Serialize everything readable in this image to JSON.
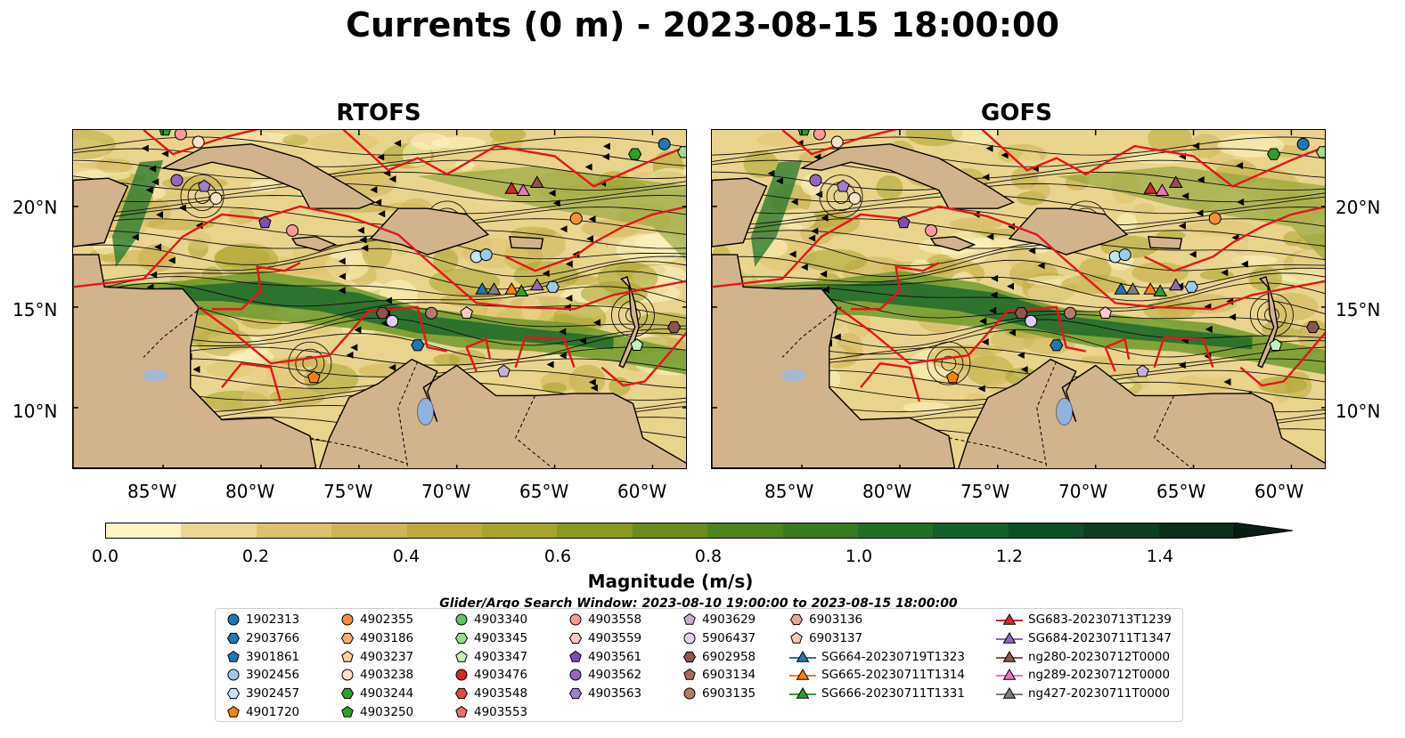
{
  "title": "Currents (0 m) - 2023-08-15 18:00:00",
  "panels": [
    {
      "title": "RTOFS",
      "key": "rtofs"
    },
    {
      "title": "GOFS",
      "key": "gofs"
    }
  ],
  "axes": {
    "lon_ticks": [
      "85°W",
      "80°W",
      "75°W",
      "70°W",
      "65°W",
      "60°W"
    ],
    "lat_ticks": [
      "20°N",
      "15°N",
      "10°N"
    ],
    "lon_range": [
      -89.6,
      -58.2
    ],
    "lat_range": [
      6.9,
      23.8
    ]
  },
  "colorbar": {
    "label": "Magnitude (m/s)",
    "ticks": [
      "0.0",
      "0.2",
      "0.4",
      "0.6",
      "0.8",
      "1.0",
      "1.2",
      "1.4"
    ],
    "range": [
      0.0,
      1.5
    ],
    "extend": "max",
    "colors": [
      "#fdf5c3",
      "#ecd895",
      "#dcc270",
      "#cdb455",
      "#bcaa3c",
      "#a6a42c",
      "#8a9a1e",
      "#6c8d1a",
      "#4f831c",
      "#387a20",
      "#236e26",
      "#145f2b",
      "#0f4e29",
      "#0e3e22",
      "#0c2e1a",
      "#0a2015"
    ]
  },
  "search_window": "Glider/Argo Search Window: 2023-08-10 19:00:00 to 2023-08-15 18:00:00",
  "legend": {
    "columns": [
      [
        {
          "label": "1902313",
          "marker": "circle",
          "color": "#1f77b4"
        },
        {
          "label": "2903766",
          "marker": "hexagon",
          "color": "#1f77b4"
        },
        {
          "label": "3901861",
          "marker": "pentagon",
          "color": "#1f77b4"
        },
        {
          "label": "3902456",
          "marker": "circle",
          "color": "#9ecae9"
        },
        {
          "label": "3902457",
          "marker": "hexagon",
          "color": "#c6e2f5"
        },
        {
          "label": "4901720",
          "marker": "pentagon",
          "color": "#ff7f0e"
        }
      ],
      [
        {
          "label": "4902355",
          "marker": "circle",
          "color": "#fd8d3c"
        },
        {
          "label": "4903186",
          "marker": "hexagon",
          "color": "#fdae6b"
        },
        {
          "label": "4903237",
          "marker": "pentagon",
          "color": "#fdd0a2"
        },
        {
          "label": "4903238",
          "marker": "circle",
          "color": "#fde0c5"
        },
        {
          "label": "4903244",
          "marker": "hexagon",
          "color": "#2ca02c"
        },
        {
          "label": "4903250",
          "marker": "pentagon",
          "color": "#2ca02c"
        }
      ],
      [
        {
          "label": "4903340",
          "marker": "circle",
          "color": "#5ec26a"
        },
        {
          "label": "4903345",
          "marker": "hexagon",
          "color": "#98df8a"
        },
        {
          "label": "4903347",
          "marker": "pentagon",
          "color": "#c7f0bf"
        },
        {
          "label": "4903476",
          "marker": "circle",
          "color": "#d62728"
        },
        {
          "label": "4903548",
          "marker": "hexagon",
          "color": "#e04a4a"
        },
        {
          "label": "4903553",
          "marker": "pentagon",
          "color": "#f07070"
        }
      ],
      [
        {
          "label": "4903558",
          "marker": "circle",
          "color": "#ff9896"
        },
        {
          "label": "4903559",
          "marker": "hexagon",
          "color": "#ffc9c6"
        },
        {
          "label": "4903561",
          "marker": "pentagon",
          "color": "#7b4fb0"
        },
        {
          "label": "4903562",
          "marker": "circle",
          "color": "#9467bd"
        },
        {
          "label": "4903563",
          "marker": "hexagon",
          "color": "#a07dd0"
        }
      ],
      [
        {
          "label": "4903629",
          "marker": "pentagon",
          "color": "#c5b0d5"
        },
        {
          "label": "5906437",
          "marker": "circle",
          "color": "#e2cff0"
        },
        {
          "label": "6902958",
          "marker": "hexagon",
          "color": "#8c564b"
        },
        {
          "label": "6903134",
          "marker": "pentagon",
          "color": "#a56b5d"
        },
        {
          "label": "6903135",
          "marker": "circle",
          "color": "#b77a6a"
        }
      ],
      [
        {
          "label": "6903136",
          "marker": "hexagon",
          "color": "#e3a895"
        },
        {
          "label": "6903137",
          "marker": "pentagon",
          "color": "#f7c9b8"
        },
        {
          "label": "SG664-20230719T1323",
          "marker": "triangle",
          "color": "#1f77b4"
        },
        {
          "label": "SG665-20230711T1314",
          "marker": "triangle",
          "color": "#ff7f0e"
        },
        {
          "label": "SG666-20230711T1331",
          "marker": "triangle",
          "color": "#2ca02c"
        }
      ],
      [
        {
          "label": "SG683-20230713T1239",
          "marker": "triangle",
          "color": "#d62728"
        },
        {
          "label": "SG684-20230711T1347",
          "marker": "triangle",
          "color": "#9467bd"
        },
        {
          "label": "ng280-20230712T0000",
          "marker": "triangle",
          "color": "#8c564b"
        },
        {
          "label": "ng289-20230712T0000",
          "marker": "triangle",
          "color": "#e377c2"
        },
        {
          "label": "ng427-20230711T0000",
          "marker": "triangle",
          "color": "#7f7f7f"
        }
      ]
    ]
  },
  "stations": [
    {
      "lon": -84.9,
      "lat": 23.8,
      "marker": "pentagon",
      "color": "#2ca02c"
    },
    {
      "lon": -84.1,
      "lat": 23.6,
      "marker": "circle",
      "color": "#ff9896"
    },
    {
      "lon": -83.2,
      "lat": 23.2,
      "marker": "circle",
      "color": "#fde0c5"
    },
    {
      "lon": -59.4,
      "lat": 23.1,
      "marker": "circle",
      "color": "#1f77b4"
    },
    {
      "lon": -58.4,
      "lat": 22.7,
      "marker": "hexagon",
      "color": "#98df8a"
    },
    {
      "lon": -60.9,
      "lat": 22.6,
      "marker": "hexagon",
      "color": "#2ca02c"
    },
    {
      "lon": -84.3,
      "lat": 21.3,
      "marker": "circle",
      "color": "#9467bd"
    },
    {
      "lon": -82.9,
      "lat": 21.0,
      "marker": "pentagon",
      "color": "#a07dd0"
    },
    {
      "lon": -82.3,
      "lat": 20.4,
      "marker": "circle",
      "color": "#fde0c5"
    },
    {
      "lon": -63.9,
      "lat": 19.4,
      "marker": "circle",
      "color": "#fd8d3c"
    },
    {
      "lon": -79.8,
      "lat": 19.2,
      "marker": "pentagon",
      "color": "#7b4fb0"
    },
    {
      "lon": -78.4,
      "lat": 18.8,
      "marker": "circle",
      "color": "#ff9896"
    },
    {
      "lon": -69.0,
      "lat": 17.5,
      "marker": "circle",
      "color": "#c6e2f5"
    },
    {
      "lon": -68.5,
      "lat": 17.6,
      "marker": "circle",
      "color": "#9ecae9"
    },
    {
      "lon": -65.1,
      "lat": 16.0,
      "marker": "hexagon",
      "color": "#9ecae9"
    },
    {
      "lon": -73.8,
      "lat": 14.7,
      "marker": "hexagon",
      "color": "#8c564b"
    },
    {
      "lon": -71.3,
      "lat": 14.7,
      "marker": "circle",
      "color": "#b77a6a"
    },
    {
      "lon": -73.3,
      "lat": 14.3,
      "marker": "circle",
      "color": "#e2cff0"
    },
    {
      "lon": -69.5,
      "lat": 14.7,
      "marker": "pentagon",
      "color": "#ffc9c6"
    },
    {
      "lon": -72.0,
      "lat": 13.1,
      "marker": "hexagon",
      "color": "#1f77b4"
    },
    {
      "lon": -58.9,
      "lat": 14.0,
      "marker": "hexagon",
      "color": "#8c564b"
    },
    {
      "lon": -60.8,
      "lat": 13.1,
      "marker": "pentagon",
      "color": "#c7f0bf"
    },
    {
      "lon": -77.3,
      "lat": 11.5,
      "marker": "pentagon",
      "color": "#ff7f0e"
    },
    {
      "lon": -67.6,
      "lat": 11.8,
      "marker": "pentagon",
      "color": "#c5b0d5"
    }
  ],
  "gliders": [
    {
      "lon": -67.2,
      "lat": 20.9,
      "color": "#d62728"
    },
    {
      "lon": -66.6,
      "lat": 20.8,
      "color": "#e377c2"
    },
    {
      "lon": -65.9,
      "lat": 21.2,
      "color": "#8c564b"
    },
    {
      "lon": -68.7,
      "lat": 15.9,
      "color": "#1f77b4"
    },
    {
      "lon": -68.1,
      "lat": 15.9,
      "color": "#7f7f7f"
    },
    {
      "lon": -67.2,
      "lat": 15.9,
      "color": "#ff7f0e"
    },
    {
      "lon": -66.7,
      "lat": 15.8,
      "color": "#2ca02c"
    },
    {
      "lon": -65.9,
      "lat": 16.1,
      "color": "#9467bd"
    }
  ]
}
